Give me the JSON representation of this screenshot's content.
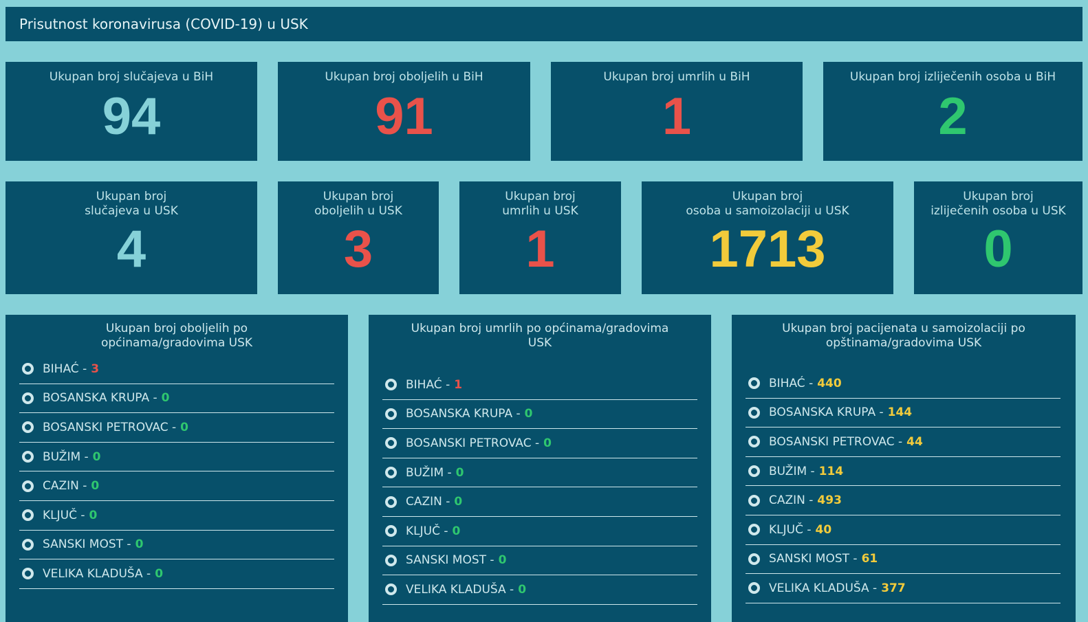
{
  "header": {
    "title": "Prisutnost koronavirusa (COVID-19) u USK"
  },
  "colors": {
    "teal": "#86d1d8",
    "red": "#e9524a",
    "green": "#2fc76f",
    "yellow": "#f2cb3b"
  },
  "bih": {
    "cases": {
      "label": "Ukupan broj slučajeva u BiH",
      "value": "94"
    },
    "infected": {
      "label": "Ukupan broj oboljelih u BiH",
      "value": "91"
    },
    "deaths": {
      "label": "Ukupan broj umrlih u BiH",
      "value": "1"
    },
    "recovered": {
      "label": "Ukupan broj izliječenih osoba u BiH",
      "value": "2"
    }
  },
  "usk": {
    "cases": {
      "label": "Ukupan broj\nslučajeva u USK",
      "value": "4"
    },
    "infected": {
      "label": "Ukupan broj\noboljelih u USK",
      "value": "3"
    },
    "deaths": {
      "label": "Ukupan broj\numrlih u USK",
      "value": "1"
    },
    "isolation": {
      "label": "Ukupan broj\nosoba u samoizolaciji u USK",
      "value": "1713"
    },
    "recovered": {
      "label": "Ukupan broj\nizliječenih osoba u USK",
      "value": "0"
    }
  },
  "panels": {
    "infected": {
      "title": "Ukupan broj oboljelih po općinama/gradovima USK",
      "items": [
        {
          "name": "BIHAĆ -",
          "value": "3"
        },
        {
          "name": "BOSANSKA KRUPA -",
          "value": "0"
        },
        {
          "name": "BOSANSKI PETROVAC -",
          "value": "0"
        },
        {
          "name": "BUŽIM -",
          "value": "0"
        },
        {
          "name": "CAZIN -",
          "value": "0"
        },
        {
          "name": "KLJUČ -",
          "value": "0"
        },
        {
          "name": "SANSKI MOST -",
          "value": "0"
        },
        {
          "name": "VELIKA KLADUŠA -",
          "value": "0"
        }
      ]
    },
    "deaths": {
      "title": "Ukupan broj umrlih po općinama/gradovima USK",
      "items": [
        {
          "name": "BIHAĆ -",
          "value": "1"
        },
        {
          "name": "BOSANSKA KRUPA -",
          "value": "0"
        },
        {
          "name": "BOSANSKI PETROVAC -",
          "value": "0"
        },
        {
          "name": "BUŽIM -",
          "value": "0"
        },
        {
          "name": "CAZIN -",
          "value": "0"
        },
        {
          "name": "KLJUČ -",
          "value": "0"
        },
        {
          "name": "SANSKI MOST -",
          "value": "0"
        },
        {
          "name": "VELIKA KLADUŠA -",
          "value": "0"
        }
      ]
    },
    "isolation": {
      "title": "Ukupan broj pacijenata u samoizolaciji po\nopštinama/gradovima USK",
      "items": [
        {
          "name": "BIHAĆ -",
          "value": "440"
        },
        {
          "name": "BOSANSKA KRUPA -",
          "value": "144"
        },
        {
          "name": "BOSANSKI PETROVAC -",
          "value": "44"
        },
        {
          "name": "BUŽIM -",
          "value": "114"
        },
        {
          "name": "CAZIN -",
          "value": "493"
        },
        {
          "name": "KLJUČ -",
          "value": "40"
        },
        {
          "name": "SANSKI MOST -",
          "value": "61"
        },
        {
          "name": "VELIKA KLADUŠA -",
          "value": "377"
        }
      ]
    }
  }
}
